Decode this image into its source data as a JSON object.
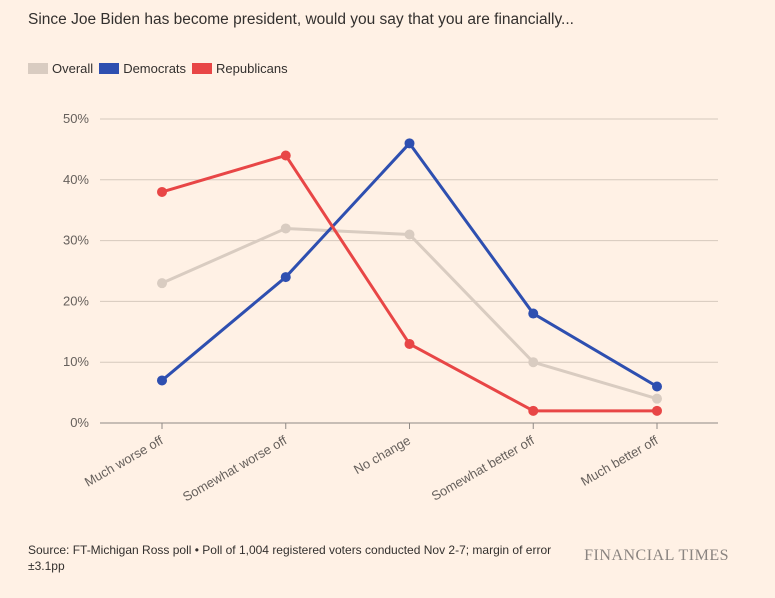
{
  "chart_data": {
    "type": "line",
    "title": "Since Joe Biden has become president, would you say that you are financially...",
    "categories": [
      "Much worse off",
      "Somewhat worse off",
      "No change",
      "Somewhat better off",
      "Much better off"
    ],
    "yticks": [
      "0%",
      "10%",
      "20%",
      "30%",
      "40%",
      "50%"
    ],
    "ylim": [
      0,
      50
    ],
    "grid": true,
    "legend_position": "top-left",
    "series": [
      {
        "name": "Overall",
        "color": "#d9ccc1",
        "values": [
          23,
          32,
          31,
          10,
          4
        ]
      },
      {
        "name": "Democrats",
        "color": "#2e4fb0",
        "values": [
          7,
          24,
          46,
          18,
          6
        ]
      },
      {
        "name": "Republicans",
        "color": "#e84646",
        "values": [
          38,
          44,
          13,
          2,
          2
        ]
      }
    ]
  },
  "footer": {
    "source": "Source: FT-Michigan Ross poll • Poll of 1,004 registered voters conducted Nov 2-7; margin of error ±3.1pp",
    "brand": "FINANCIAL TIMES"
  }
}
